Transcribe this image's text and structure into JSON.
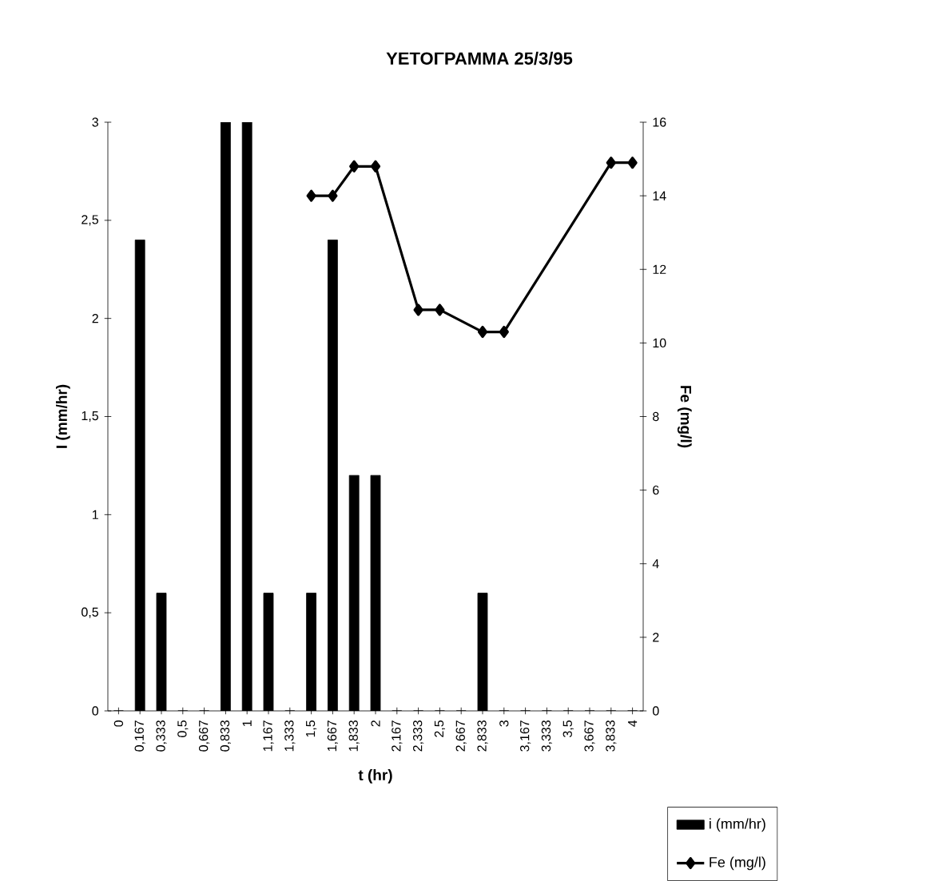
{
  "chart_data": {
    "type": "bar",
    "title": "ΥΕΤΟΓΡΑΜΜΑ 25/3/95",
    "xlabel": "t (hr)",
    "ylabel": "I (mm/hr)",
    "y2label": "Fe (mg/l)",
    "categories": [
      "0",
      "0,167",
      "0,333",
      "0,5",
      "0,667",
      "0,833",
      "1",
      "1,167",
      "1,333",
      "1,5",
      "1,667",
      "1,833",
      "2",
      "2,167",
      "2,333",
      "2,5",
      "2,667",
      "2,833",
      "3",
      "3,167",
      "3,333",
      "3,5",
      "3,667",
      "3,833",
      "4"
    ],
    "series": [
      {
        "name": "i (mm/hr)",
        "color": "#000000",
        "values": [
          0,
          2.4,
          0.6,
          0,
          0,
          3,
          3,
          0.6,
          0,
          0.6,
          2.4,
          1.2,
          1.2,
          0,
          0,
          0,
          0,
          0.6,
          0,
          0,
          0,
          0,
          0,
          0,
          0
        ]
      },
      {
        "name": "Fe (mg/l)",
        "type": "line",
        "axis": "y2",
        "color": "#000000",
        "marker": "diamond",
        "values": [
          null,
          null,
          null,
          null,
          null,
          null,
          null,
          null,
          null,
          14,
          14,
          14.8,
          14.8,
          null,
          10.9,
          10.9,
          null,
          10.3,
          10.3,
          null,
          null,
          null,
          null,
          14.9,
          14.9
        ]
      }
    ],
    "ylim": [
      0,
      3
    ],
    "yticks": [
      0,
      {
        "value": 0.5,
        "label": "0,5"
      },
      1,
      {
        "value": 1.5,
        "label": "1,5"
      },
      2,
      {
        "value": 2.5,
        "label": "2,5"
      },
      3
    ],
    "y2lim": [
      0,
      16
    ],
    "y2ticks": [
      0,
      2,
      4,
      6,
      8,
      10,
      12,
      14,
      16
    ],
    "legend": "bottom right"
  }
}
